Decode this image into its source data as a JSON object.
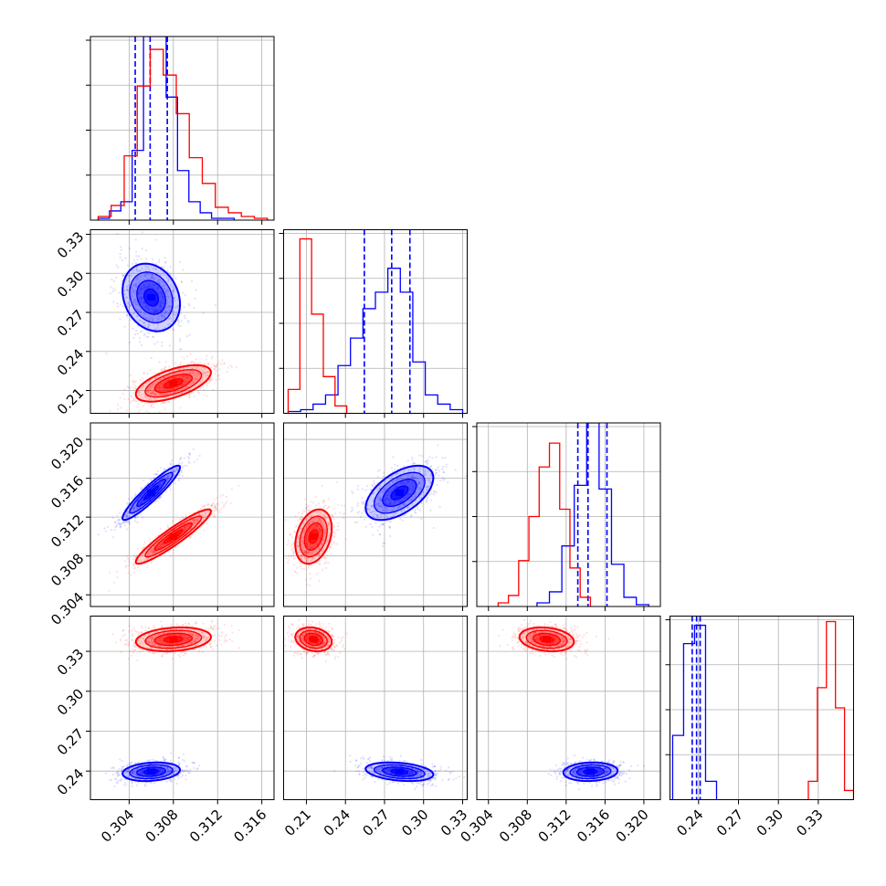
{
  "chart_data": {
    "type": "corner",
    "parameters": 4,
    "grid": true,
    "colors": {
      "blue": "#0000ff",
      "red": "#ff0000",
      "grid": "#b0b0b0"
    },
    "axes": {
      "p0": {
        "range": [
          0.3005,
          0.3171
        ],
        "ticks": [
          "0.304",
          "0.308",
          "0.312",
          "0.316"
        ]
      },
      "p1": {
        "range": [
          0.1925,
          0.3335
        ],
        "ticks": [
          "0.21",
          "0.24",
          "0.27",
          "0.30",
          "0.33"
        ]
      },
      "p2": {
        "range": [
          0.3028,
          0.3217
        ],
        "ticks": [
          "0.304",
          "0.308",
          "0.312",
          "0.316",
          "0.320"
        ]
      },
      "p3": {
        "range": [
          0.2185,
          0.3565
        ],
        "ticks": [
          "0.24",
          "0.27",
          "0.30",
          "0.33"
        ]
      }
    },
    "series": [
      {
        "color": "blue",
        "means": [
          0.306,
          0.2815,
          0.3145,
          0.2395
        ],
        "sds": [
          0.0013,
          0.013,
          0.0014,
          0.0035
        ],
        "quantiles": {
          "p0": [
            0.30455,
            0.3059,
            0.30745
          ],
          "p1": [
            0.2545,
            0.2755,
            0.2895
          ],
          "p2": [
            0.3132,
            0.31425,
            0.3162
          ],
          "p3": [
            0.2352,
            0.2385,
            0.2412
          ]
        },
        "histograms": {
          "p0": [
            0.01,
            0.05,
            0.1,
            0.38,
            1.0,
            1.0,
            0.67,
            0.27,
            0.1,
            0.04,
            0.01,
            0.01
          ],
          "p1": [
            0.01,
            0.02,
            0.05,
            0.1,
            0.26,
            0.41,
            0.57,
            0.66,
            0.79,
            0.66,
            0.28,
            0.1,
            0.05,
            0.02
          ],
          "p2": [
            0.02,
            0.08,
            0.33,
            0.66,
            1.0,
            0.64,
            0.23,
            0.05,
            0.01
          ],
          "p3": [
            0.35,
            0.85,
            0.95,
            0.1
          ]
        },
        "correlations": {
          "p0_p1": -0.2,
          "p0_p2": 0.93,
          "p0_p3": 0.2,
          "p1_p2": 0.55,
          "p1_p3": -0.3,
          "p2_p3": 0.1
        }
      },
      {
        "color": "red",
        "means": [
          0.308,
          0.2155,
          0.31,
          0.339
        ],
        "sds": [
          0.0017,
          0.007,
          0.0014,
          0.0045
        ],
        "quantiles": null,
        "histograms": {
          "p0": [
            0.02,
            0.08,
            0.35,
            0.73,
            0.93,
            0.79,
            0.58,
            0.34,
            0.2,
            0.07,
            0.04,
            0.02,
            0.01
          ],
          "p1": [
            0.13,
            0.95,
            0.54,
            0.2,
            0.04
          ],
          "p2": [
            0.02,
            0.06,
            0.25,
            0.49,
            0.76,
            0.89,
            0.53,
            0.21,
            0.05
          ],
          "p3": [
            0.1,
            0.61,
            0.97,
            0.5,
            0.05
          ]
        },
        "correlations": {
          "p0_p1": 0.6,
          "p0_p2": 0.93,
          "p0_p3": 0.2,
          "p1_p2": 0.3,
          "p1_p3": -0.2,
          "p2_p3": -0.2
        }
      }
    ]
  }
}
